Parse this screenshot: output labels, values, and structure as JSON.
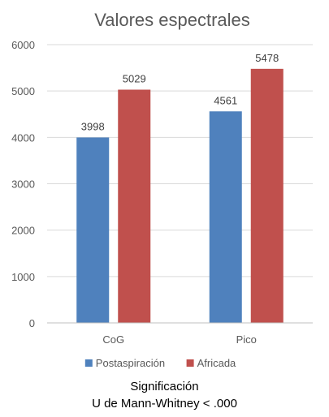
{
  "chart_data": {
    "type": "bar",
    "title": "Valores espectrales",
    "categories": [
      "CoG",
      "Pico"
    ],
    "series": [
      {
        "name": "Postaspiración",
        "values": [
          3998,
          4561
        ],
        "color": "#4f81bd"
      },
      {
        "name": "Africada",
        "values": [
          5029,
          5478
        ],
        "color": "#c0504d"
      }
    ],
    "ylim": [
      0,
      6000
    ],
    "yticks": [
      0,
      1000,
      2000,
      3000,
      4000,
      5000,
      6000
    ],
    "grid": true,
    "legend_position": "bottom",
    "data_labels": true
  },
  "caption": {
    "line1": "Significación",
    "line2": "U de Mann-Whitney < .000"
  }
}
